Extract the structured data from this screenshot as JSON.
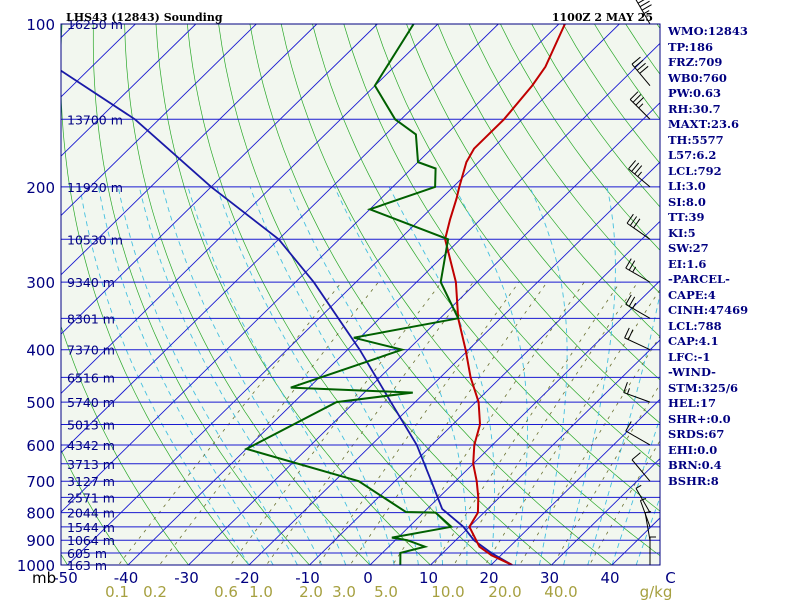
{
  "header": {
    "station": "LHS43 (12843) Sounding",
    "datetime": "1100Z  2 MAY 25"
  },
  "colors": {
    "temperature": "#c00000",
    "dewpoint": "#006000",
    "parcel": "#1a1aa8",
    "isobar": "#1a1ad0",
    "isotherm": "#1a1ad0",
    "dry_adiabat": "#2aa82a",
    "moist_adiabat": "#45c0e0",
    "mixing_ratio": "#6a7030",
    "text": "#000080",
    "mixing_label": "#a6a040",
    "background": "#f2f7ef"
  },
  "chart_data": {
    "type": "skew-t",
    "pressure_unit": "mb",
    "temperature_unit": "C",
    "pressure_levels": [
      100,
      200,
      300,
      400,
      500,
      600,
      700,
      800,
      900,
      1000
    ],
    "temperature_ticks": [
      -50,
      -40,
      -30,
      -20,
      -10,
      0,
      10,
      20,
      30,
      40,
      50
    ],
    "temperature_tick_labels": [
      "-50",
      "-40",
      "-30",
      "-20",
      "-10",
      "0",
      "10",
      "20",
      "30",
      "40",
      "C"
    ],
    "mixing_ratio_labels": [
      "0.1",
      "0.2",
      "0.6",
      "1.0",
      "2.0",
      "3.0",
      "5.0",
      "10.0",
      "20.0",
      "40.0",
      "g/kg"
    ],
    "heights": [
      {
        "p": 100,
        "label": "16250 m"
      },
      {
        "p": 150,
        "label": "13700 m"
      },
      {
        "p": 200,
        "label": "11920 m"
      },
      {
        "p": 250,
        "label": "10530 m"
      },
      {
        "p": 300,
        "label": "9340 m"
      },
      {
        "p": 350,
        "label": "8301 m"
      },
      {
        "p": 400,
        "label": "7370 m"
      },
      {
        "p": 450,
        "label": "6516 m"
      },
      {
        "p": 500,
        "label": "5740 m"
      },
      {
        "p": 550,
        "label": "5013 m"
      },
      {
        "p": 600,
        "label": "4342 m"
      },
      {
        "p": 650,
        "label": "3713 m"
      },
      {
        "p": 700,
        "label": "3127 m"
      },
      {
        "p": 750,
        "label": "2571 m"
      },
      {
        "p": 800,
        "label": "2044 m"
      },
      {
        "p": 850,
        "label": "1544 m"
      },
      {
        "p": 900,
        "label": "1064 m"
      },
      {
        "p": 950,
        "label": "605 m"
      },
      {
        "p": 1000,
        "label": "163 m"
      }
    ],
    "series": [
      {
        "kind": "temperature",
        "points": [
          {
            "p": 1000,
            "t": 23.5
          },
          {
            "p": 960,
            "t": 18.5
          },
          {
            "p": 925,
            "t": 15.0
          },
          {
            "p": 850,
            "t": 10.0
          },
          {
            "p": 800,
            "t": 9.0
          },
          {
            "p": 750,
            "t": 6.5
          },
          {
            "p": 700,
            "t": 3.5
          },
          {
            "p": 650,
            "t": 0.0
          },
          {
            "p": 600,
            "t": -3.0
          },
          {
            "p": 550,
            "t": -5.5
          },
          {
            "p": 500,
            "t": -9.5
          },
          {
            "p": 450,
            "t": -15.0
          },
          {
            "p": 400,
            "t": -20.5
          },
          {
            "p": 350,
            "t": -27.0
          },
          {
            "p": 300,
            "t": -33.5
          },
          {
            "p": 250,
            "t": -42.5
          },
          {
            "p": 230,
            "t": -45.0
          },
          {
            "p": 210,
            "t": -47.5
          },
          {
            "p": 200,
            "t": -49.0
          },
          {
            "p": 180,
            "t": -52.0
          },
          {
            "p": 170,
            "t": -53.0
          },
          {
            "p": 150,
            "t": -53.0
          },
          {
            "p": 130,
            "t": -54.0
          },
          {
            "p": 120,
            "t": -55.0
          },
          {
            "p": 100,
            "t": -59.0
          }
        ]
      },
      {
        "kind": "dewpoint",
        "points": [
          {
            "p": 1000,
            "t": 5.0
          },
          {
            "p": 950,
            "t": 3.0
          },
          {
            "p": 925,
            "t": 6.0
          },
          {
            "p": 900,
            "t": 2.0
          },
          {
            "p": 890,
            "t": -1.0
          },
          {
            "p": 850,
            "t": 7.0
          },
          {
            "p": 800,
            "t": 2.0
          },
          {
            "p": 798,
            "t": -3.0
          },
          {
            "p": 700,
            "t": -16.0
          },
          {
            "p": 610,
            "t": -40.0
          },
          {
            "p": 500,
            "t": -33.0
          },
          {
            "p": 480,
            "t": -22.0
          },
          {
            "p": 470,
            "t": -43.0
          },
          {
            "p": 400,
            "t": -31.0
          },
          {
            "p": 380,
            "t": -41.0
          },
          {
            "p": 350,
            "t": -27.0
          },
          {
            "p": 300,
            "t": -36.0
          },
          {
            "p": 250,
            "t": -42.0
          },
          {
            "p": 220,
            "t": -60.0
          },
          {
            "p": 200,
            "t": -53.0
          },
          {
            "p": 185,
            "t": -56.0
          },
          {
            "p": 180,
            "t": -60.0
          },
          {
            "p": 160,
            "t": -65.0
          },
          {
            "p": 150,
            "t": -71.0
          },
          {
            "p": 130,
            "t": -80.0
          },
          {
            "p": 100,
            "t": -84.0
          }
        ]
      },
      {
        "kind": "parcel",
        "points": [
          {
            "p": 1000,
            "t": 23.5
          },
          {
            "p": 950,
            "t": 18.0
          },
          {
            "p": 900,
            "t": 13.0
          },
          {
            "p": 850,
            "t": 9.0
          },
          {
            "p": 800,
            "t": 3.8
          },
          {
            "p": 788,
            "t": 2.5
          },
          {
            "p": 700,
            "t": -4.0
          },
          {
            "p": 600,
            "t": -12.5
          },
          {
            "p": 500,
            "t": -24.0
          },
          {
            "p": 400,
            "t": -38.0
          },
          {
            "p": 300,
            "t": -57.0
          },
          {
            "p": 250,
            "t": -70.0
          },
          {
            "p": 200,
            "t": -90.0
          },
          {
            "p": 150,
            "t": -114.0
          },
          {
            "p": 100,
            "t": -154.0
          }
        ]
      }
    ],
    "wind_barbs": [
      {
        "p": 100,
        "dir": 330,
        "spd": 45
      },
      {
        "p": 130,
        "dir": 320,
        "spd": 40
      },
      {
        "p": 150,
        "dir": 315,
        "spd": 35
      },
      {
        "p": 200,
        "dir": 310,
        "spd": 35
      },
      {
        "p": 250,
        "dir": 305,
        "spd": 30
      },
      {
        "p": 300,
        "dir": 300,
        "spd": 25
      },
      {
        "p": 350,
        "dir": 300,
        "spd": 25
      },
      {
        "p": 400,
        "dir": 295,
        "spd": 20
      },
      {
        "p": 500,
        "dir": 290,
        "spd": 15
      },
      {
        "p": 600,
        "dir": 300,
        "spd": 10
      },
      {
        "p": 700,
        "dir": 320,
        "spd": 10
      },
      {
        "p": 800,
        "dir": 330,
        "spd": 5
      },
      {
        "p": 850,
        "dir": 340,
        "spd": 5
      },
      {
        "p": 900,
        "dir": 350,
        "spd": 5
      },
      {
        "p": 1000,
        "dir": 0,
        "spd": 5
      }
    ]
  },
  "indices": [
    "WMO:12843",
    "TP:186",
    "FRZ:709",
    "WB0:760",
    "PW:0.63",
    "RH:30.7",
    "MAXT:23.6",
    "TH:5577",
    "L57:6.2",
    "LCL:792",
    "LI:3.0",
    "SI:8.0",
    "TT:39",
    "KI:5",
    "SW:27",
    "EI:1.6",
    "-PARCEL-",
    "CAPE:4",
    "CINH:47469",
    "LCL:788",
    "CAP:4.1",
    "LFC:-1",
    "-WIND-",
    "STM:325/6",
    "HEL:17",
    "SHR+:0.0",
    "SRDS:67",
    "EHI:0.0",
    "BRN:0.4",
    "BSHR:8"
  ]
}
